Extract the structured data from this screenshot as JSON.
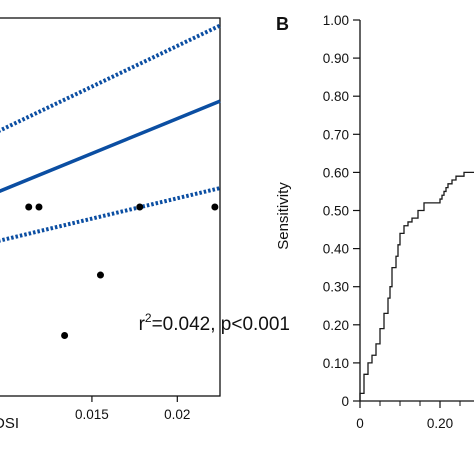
{
  "colors": {
    "fit_line": "#0b4ea2",
    "points": "#000000",
    "roc_curve": "#1a1a1a",
    "axis": "#111111"
  },
  "chart_data": [
    {
      "type": "scatter",
      "title": "",
      "xlabel": "DSI",
      "ylabel": "",
      "xlim": [
        0.0095,
        0.0225
      ],
      "ylim": [
        0.0,
        1.0
      ],
      "x_tick_labels": [
        "0.015",
        "0.02"
      ],
      "x_tick_values": [
        0.015,
        0.02
      ],
      "points": [
        {
          "x": 0.0113,
          "y": 0.5
        },
        {
          "x": 0.0119,
          "y": 0.5
        },
        {
          "x": 0.0134,
          "y": 0.16
        },
        {
          "x": 0.0155,
          "y": 0.32
        },
        {
          "x": 0.0178,
          "y": 0.5
        },
        {
          "x": 0.0222,
          "y": 0.5
        }
      ],
      "regression": {
        "fit": [
          [
            0.0095,
            0.54
          ],
          [
            0.0225,
            0.78
          ]
        ],
        "ci_upper": [
          [
            0.0095,
            0.7
          ],
          [
            0.0225,
            0.98
          ]
        ],
        "ci_lower": [
          [
            0.0095,
            0.41
          ],
          [
            0.0225,
            0.55
          ]
        ]
      },
      "annotation": {
        "r2_value": "=0.042, p<0.001",
        "r_label": "r",
        "r_exponent": "2",
        "x": 0.01925,
        "y": 0.305
      }
    },
    {
      "type": "line",
      "panel_label": "B",
      "title": "",
      "xlabel": "",
      "ylabel": "Sensitivity",
      "xlim": [
        0.0,
        0.3
      ],
      "ylim": [
        0.0,
        1.0
      ],
      "y_tick_labels": [
        "1.00",
        "0.90",
        "0.80",
        "0.70",
        "0.60",
        "0.50",
        "0.40",
        "0.30",
        "0.20",
        "0.10",
        "0"
      ],
      "y_tick_values": [
        1.0,
        0.9,
        0.8,
        0.7,
        0.6,
        0.5,
        0.4,
        0.3,
        0.2,
        0.1,
        0.0
      ],
      "x_tick_labels": [
        "0",
        "0.20"
      ],
      "x_tick_values": [
        0.0,
        0.2
      ],
      "series": [
        {
          "x": [
            0.0,
            0.0,
            0.01,
            0.01,
            0.02,
            0.02,
            0.03,
            0.03,
            0.04,
            0.04,
            0.05,
            0.05,
            0.06,
            0.06,
            0.07,
            0.07,
            0.075,
            0.075,
            0.08,
            0.08,
            0.09,
            0.09,
            0.095,
            0.095,
            0.1,
            0.1,
            0.11,
            0.11,
            0.12,
            0.12,
            0.13,
            0.13,
            0.145,
            0.145,
            0.16,
            0.16,
            0.17,
            0.17,
            0.2,
            0.2,
            0.205,
            0.205,
            0.21,
            0.21,
            0.215,
            0.215,
            0.22,
            0.22,
            0.23,
            0.23,
            0.24,
            0.24,
            0.25,
            0.25,
            0.26,
            0.26,
            0.27,
            0.27,
            0.3
          ],
          "y": [
            0.0,
            0.02,
            0.02,
            0.07,
            0.07,
            0.1,
            0.1,
            0.12,
            0.12,
            0.15,
            0.15,
            0.19,
            0.19,
            0.23,
            0.23,
            0.27,
            0.27,
            0.3,
            0.3,
            0.35,
            0.35,
            0.38,
            0.38,
            0.41,
            0.41,
            0.44,
            0.44,
            0.46,
            0.46,
            0.47,
            0.47,
            0.48,
            0.48,
            0.5,
            0.5,
            0.52,
            0.52,
            0.52,
            0.52,
            0.53,
            0.53,
            0.54,
            0.54,
            0.55,
            0.55,
            0.56,
            0.56,
            0.57,
            0.57,
            0.58,
            0.58,
            0.59,
            0.59,
            0.59,
            0.59,
            0.6,
            0.6,
            0.6,
            0.6
          ]
        }
      ]
    }
  ]
}
